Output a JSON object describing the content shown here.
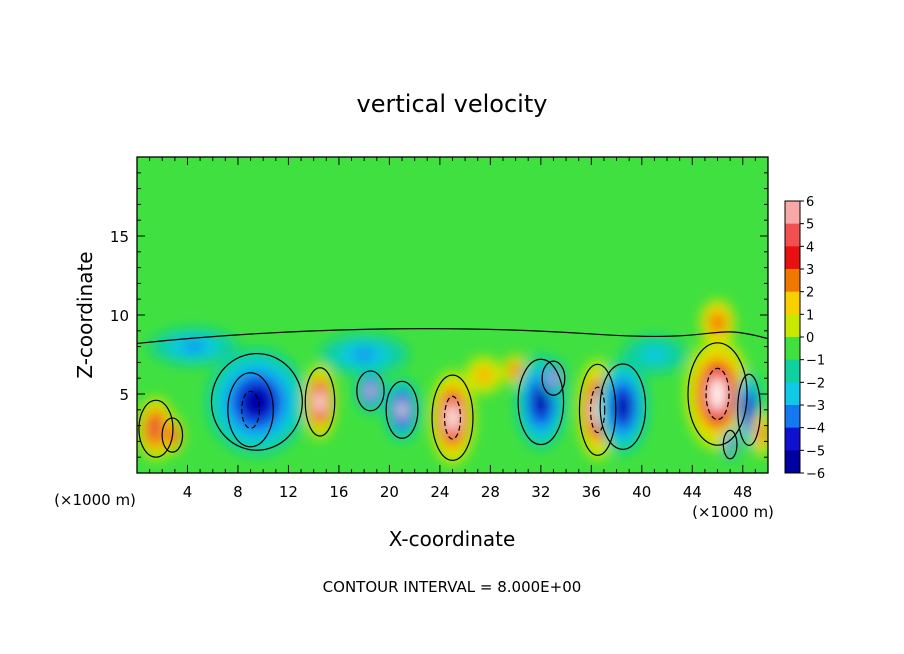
{
  "chart_data": {
    "type": "heatmap",
    "title": "vertical velocity",
    "xlabel": "X-coordinate",
    "ylabel": "Z-coordinate",
    "x_unit_left": "(×1000 m)",
    "x_unit_right": "(×1000 m)",
    "xlim": [
      0,
      50
    ],
    "ylim": [
      0,
      20
    ],
    "xticks": [
      4,
      8,
      12,
      16,
      20,
      24,
      28,
      32,
      36,
      40,
      44,
      48
    ],
    "yticks": [
      5,
      10,
      15
    ],
    "footer": "CONTOUR INTERVAL = 8.000E+00",
    "colorbar": {
      "labels": [
        "6",
        "5",
        "4",
        "3",
        "2",
        "1",
        "0",
        "−1",
        "−2",
        "−3",
        "−4",
        "−5",
        "−6"
      ],
      "values": [
        6,
        5,
        4,
        3,
        2,
        1,
        0,
        -1,
        -2,
        -3,
        -4,
        -5,
        -6
      ],
      "colors": [
        "#f7a8a8",
        "#f25050",
        "#e81010",
        "#f07800",
        "#f8d000",
        "#c8e800",
        "#40e040",
        "#10d0a0",
        "#10c8e8",
        "#1478f0",
        "#1010d0",
        "#0000a0",
        "#7800b4"
      ]
    },
    "background_color": "#40e040",
    "features": [
      {
        "x": 1.5,
        "z": 2.8,
        "rx": 1.5,
        "rz": 2.0,
        "w": 5
      },
      {
        "x": 2.8,
        "z": 2.4,
        "rx": 0.9,
        "rz": 1.2,
        "w": 5
      },
      {
        "x": 9.0,
        "z": 4.0,
        "rx": 2.0,
        "rz": 2.6,
        "w": 7
      },
      {
        "x": 9.5,
        "z": 4.5,
        "rx": 4.0,
        "rz": 3.4,
        "w": -5
      },
      {
        "x": 4.5,
        "z": 8.0,
        "rx": 3.5,
        "rz": 1.2,
        "w": -3
      },
      {
        "x": 14.5,
        "z": 4.5,
        "rx": 1.3,
        "rz": 2.4,
        "w": 6
      },
      {
        "x": 18.5,
        "z": 5.2,
        "rx": 1.2,
        "rz": 1.4,
        "w": -6
      },
      {
        "x": 21.0,
        "z": 4.0,
        "rx": 1.4,
        "rz": 2.0,
        "w": -6
      },
      {
        "x": 18.0,
        "z": 7.5,
        "rx": 3.5,
        "rz": 1.3,
        "w": -3
      },
      {
        "x": 25.0,
        "z": 3.5,
        "rx": 1.8,
        "rz": 3.0,
        "w": 7
      },
      {
        "x": 27.5,
        "z": 6.2,
        "rx": 1.5,
        "rz": 1.2,
        "w": 3
      },
      {
        "x": 30.0,
        "z": 6.5,
        "rx": 1.0,
        "rz": 1.0,
        "w": 4
      },
      {
        "x": 32.0,
        "z": 4.5,
        "rx": 2.0,
        "rz": 3.0,
        "w": -5
      },
      {
        "x": 33.0,
        "z": 6.0,
        "rx": 1.0,
        "rz": 1.2,
        "w": -6
      },
      {
        "x": 36.5,
        "z": 4.0,
        "rx": 1.6,
        "rz": 3.2,
        "w": 7
      },
      {
        "x": 38.5,
        "z": 4.2,
        "rx": 2.0,
        "rz": 3.0,
        "w": -5
      },
      {
        "x": 46.0,
        "z": 5.0,
        "rx": 2.6,
        "rz": 3.6,
        "w": 7
      },
      {
        "x": 46.0,
        "z": 9.5,
        "rx": 1.4,
        "rz": 1.5,
        "w": 4
      },
      {
        "x": 48.5,
        "z": 4.0,
        "rx": 1.0,
        "rz": 2.5,
        "w": -5
      },
      {
        "x": 47.0,
        "z": 1.8,
        "rx": 0.6,
        "rz": 1.0,
        "w": -6
      },
      {
        "x": 41.0,
        "z": 7.5,
        "rx": 2.5,
        "rz": 1.2,
        "w": -2
      },
      {
        "x": 49.5,
        "z": 2.5,
        "rx": 0.8,
        "rz": 1.5,
        "w": 4
      }
    ]
  }
}
